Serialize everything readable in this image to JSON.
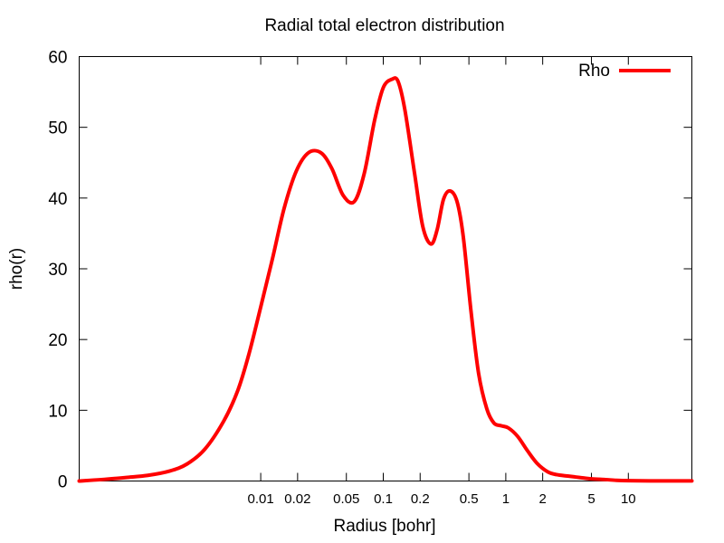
{
  "chart_data": {
    "type": "line",
    "title": "Radial total electron distribution",
    "xlabel": "Radius [bohr]",
    "ylabel": "rho(r)",
    "xscale": "log",
    "xlim": [
      0.00033,
      33
    ],
    "ylim": [
      0,
      60
    ],
    "grid": false,
    "legend_position": "top-right",
    "x_tick_labels": [
      "0.01",
      "0.02",
      "0.05",
      "0.1",
      "0.2",
      "0.5",
      "1",
      "2",
      "5",
      "10"
    ],
    "y_tick_labels": [
      "0",
      "10",
      "20",
      "30",
      "40",
      "50",
      "60"
    ],
    "series": [
      {
        "name": "Rho",
        "color": "#ff0000",
        "x": [
          0.00033,
          0.0005,
          0.0008,
          0.0012,
          0.0018,
          0.0025,
          0.0035,
          0.005,
          0.0065,
          0.008,
          0.01,
          0.0125,
          0.0155,
          0.0195,
          0.0245,
          0.031,
          0.038,
          0.047,
          0.058,
          0.07,
          0.085,
          0.1,
          0.118,
          0.132,
          0.15,
          0.18,
          0.21,
          0.245,
          0.275,
          0.31,
          0.35,
          0.4,
          0.45,
          0.52,
          0.6,
          0.7,
          0.8,
          0.92,
          1.05,
          1.25,
          1.5,
          1.8,
          2.2,
          2.6,
          3.2,
          4.0,
          5.0,
          6.5,
          8.0,
          10.0,
          15.0,
          25.0,
          33.0
        ],
        "y": [
          0,
          0.2,
          0.5,
          0.8,
          1.4,
          2.4,
          4.5,
          8.5,
          12.8,
          17.9,
          24.6,
          31.5,
          38.5,
          43.8,
          46.4,
          46.4,
          44.2,
          40.4,
          39.5,
          43.5,
          51.0,
          55.6,
          56.8,
          56.5,
          52.5,
          43.5,
          36.0,
          33.5,
          35.5,
          39.8,
          41.0,
          39.5,
          34.5,
          24.0,
          15.2,
          10.2,
          8.2,
          7.8,
          7.5,
          6.3,
          4.3,
          2.5,
          1.3,
          0.9,
          0.7,
          0.5,
          0.3,
          0.2,
          0.1,
          0.05,
          0.02,
          0.01,
          0.01
        ]
      }
    ]
  }
}
